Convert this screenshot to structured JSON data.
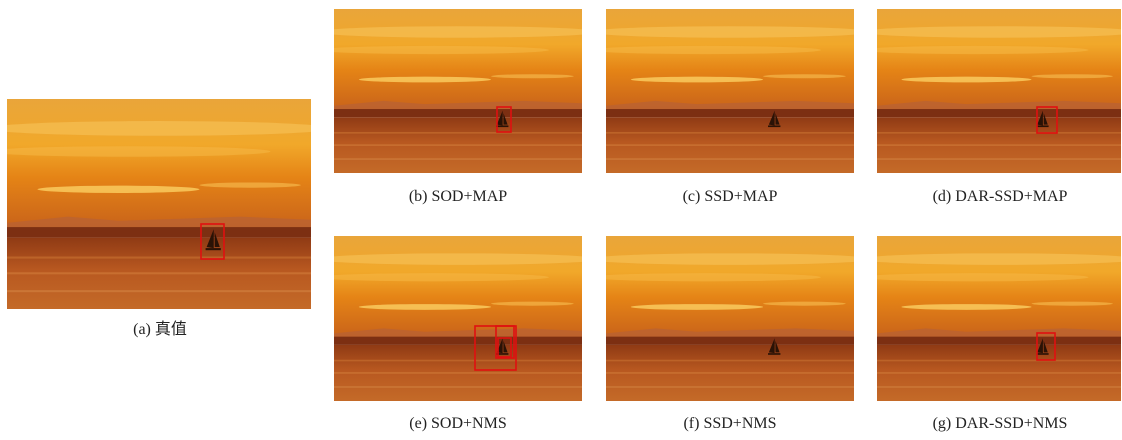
{
  "figure": {
    "panels": [
      {
        "caption": "(a) 真值"
      },
      {
        "caption": "(b) SOD+MAP"
      },
      {
        "caption": "(c) SSD+MAP"
      },
      {
        "caption": "(d) DAR-SSD+MAP"
      },
      {
        "caption": "(e) SOD+NMS"
      },
      {
        "caption": "(f) SSD+NMS"
      },
      {
        "caption": "(g) DAR-SSD+NMS"
      }
    ]
  }
}
